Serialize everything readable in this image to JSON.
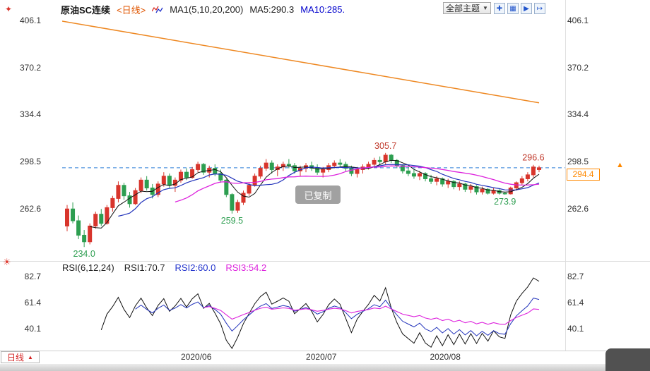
{
  "header": {
    "symbol": "原油SC连续",
    "period": "<日线>",
    "ma_settings": "MA1(5,10,20,200)",
    "ma5": "MA5:290.3",
    "ma10": "MA10:285.",
    "theme_button": {
      "label": "全部主题",
      "caret": "▼"
    },
    "toolbar_icons": [
      "✚",
      "▦",
      "▶",
      "↦"
    ]
  },
  "icons": {
    "marker": "✦",
    "sun": "☀",
    "arrow_up": "▲"
  },
  "toast": "已复制",
  "rsi_header": {
    "title": "RSI(6,12,24)",
    "rsi1": "RSI1:70.7",
    "rsi2": "RSI2:60.0",
    "rsi3": "RSI3:54.2"
  },
  "price_box": "294.4",
  "bottom": {
    "tab_label": "日线",
    "tab_caret": "▲"
  },
  "colors": {
    "up": "#d8352c",
    "down": "#2d9e50",
    "ma5": "#111111",
    "ma10": "#2233bb",
    "ma20": "#dd22dd",
    "ma200": "#ee8822",
    "dashed": "#2f7fd6",
    "ann_red": "#c0392b",
    "ann_green": "#2d9e50",
    "accent_orange": "#ff8800"
  },
  "chart_data": {
    "type": "candlestick",
    "title": "原油SC连续 日线",
    "main": {
      "y_ticks": [
        406.1,
        370.2,
        334.4,
        298.5,
        262.6
      ],
      "last_price": 294.4,
      "ma_periods": [
        5,
        10,
        20
      ],
      "ma200": {
        "start": 406.1,
        "end": 343.9
      },
      "annotations": [
        {
          "text": "305.7",
          "index": 56,
          "price": 305.7,
          "placement": "above",
          "color": "#c0392b"
        },
        {
          "text": "296.6",
          "index": 82,
          "price": 296.6,
          "placement": "above",
          "color": "#c0392b"
        },
        {
          "text": "273.9",
          "index": 77,
          "price": 273.9,
          "placement": "below",
          "color": "#2d9e50"
        },
        {
          "text": "259.5",
          "index": 29,
          "price": 259.5,
          "placement": "below",
          "color": "#2d9e50"
        },
        {
          "text": "234.0",
          "index": 3,
          "price": 234.0,
          "placement": "below",
          "color": "#2d9e50"
        }
      ],
      "candles": [
        [
          250,
          266,
          246,
          263
        ],
        [
          263,
          268,
          252,
          254
        ],
        [
          254,
          258,
          240,
          243
        ],
        [
          243,
          247,
          234,
          238
        ],
        [
          238,
          252,
          236,
          250
        ],
        [
          250,
          261,
          248,
          259
        ],
        [
          259,
          263,
          250,
          252
        ],
        [
          252,
          266,
          251,
          264
        ],
        [
          264,
          273,
          261,
          271
        ],
        [
          271,
          284,
          268,
          281
        ],
        [
          281,
          283,
          270,
          273
        ],
        [
          273,
          276,
          264,
          267
        ],
        [
          267,
          279,
          266,
          277
        ],
        [
          277,
          287,
          275,
          285
        ],
        [
          285,
          288,
          277,
          279
        ],
        [
          279,
          282,
          271,
          274
        ],
        [
          274,
          284,
          272,
          282
        ],
        [
          282,
          291,
          280,
          288
        ],
        [
          288,
          290,
          279,
          281
        ],
        [
          281,
          287,
          276,
          285
        ],
        [
          285,
          293,
          283,
          291
        ],
        [
          291,
          294,
          285,
          287
        ],
        [
          287,
          295,
          286,
          293
        ],
        [
          293,
          299,
          291,
          297
        ],
        [
          297,
          298,
          289,
          291
        ],
        [
          291,
          296,
          287,
          294
        ],
        [
          294,
          297,
          288,
          290
        ],
        [
          290,
          293,
          283,
          285
        ],
        [
          285,
          286,
          272,
          274
        ],
        [
          274,
          275,
          259.5,
          262
        ],
        [
          262,
          270,
          260,
          268
        ],
        [
          268,
          277,
          266,
          275
        ],
        [
          275,
          283,
          273,
          281
        ],
        [
          281,
          290,
          280,
          288
        ],
        [
          288,
          296,
          286,
          294
        ],
        [
          294,
          301,
          292,
          298
        ],
        [
          298,
          300,
          290,
          293
        ],
        [
          293,
          297,
          288,
          295
        ],
        [
          295,
          299,
          292,
          297
        ],
        [
          297,
          301,
          294,
          296
        ],
        [
          296,
          298,
          290,
          292
        ],
        [
          292,
          296,
          288,
          294
        ],
        [
          294,
          298,
          291,
          296
        ],
        [
          296,
          299,
          292,
          294
        ],
        [
          294,
          297,
          289,
          291
        ],
        [
          291,
          295,
          287,
          293
        ],
        [
          293,
          298,
          291,
          296
        ],
        [
          296,
          300,
          294,
          298
        ],
        [
          298,
          301,
          295,
          297
        ],
        [
          297,
          299,
          292,
          294
        ],
        [
          294,
          296,
          288,
          290
        ],
        [
          290,
          295,
          287,
          293
        ],
        [
          293,
          297,
          290,
          295
        ],
        [
          295,
          299,
          293,
          297
        ],
        [
          297,
          302,
          295,
          300
        ],
        [
          300,
          303,
          297,
          299
        ],
        [
          299,
          305.7,
          297,
          304
        ],
        [
          304,
          305,
          298,
          300
        ],
        [
          300,
          301,
          294,
          296
        ],
        [
          296,
          297,
          290,
          292
        ],
        [
          292,
          295,
          288,
          290
        ],
        [
          290,
          293,
          286,
          288
        ],
        [
          288,
          292,
          285,
          290
        ],
        [
          290,
          291,
          284,
          286
        ],
        [
          286,
          289,
          282,
          284
        ],
        [
          284,
          288,
          281,
          286
        ],
        [
          286,
          287,
          280,
          282
        ],
        [
          282,
          286,
          279,
          284
        ],
        [
          284,
          285,
          278,
          280
        ],
        [
          280,
          284,
          277,
          282
        ],
        [
          282,
          283,
          276,
          278
        ],
        [
          278,
          282,
          275,
          280
        ],
        [
          280,
          281,
          274,
          276
        ],
        [
          276,
          280,
          274,
          278
        ],
        [
          278,
          279,
          274,
          275
        ],
        [
          275,
          279,
          274,
          277
        ],
        [
          277,
          278,
          274,
          275
        ],
        [
          275,
          276,
          273.9,
          274.5
        ],
        [
          274.5,
          280,
          274,
          279
        ],
        [
          279,
          284,
          277,
          283
        ],
        [
          283,
          288,
          281,
          286
        ],
        [
          286,
          291,
          284,
          289
        ],
        [
          289,
          296.6,
          287,
          295
        ],
        [
          293,
          296,
          291,
          294.4
        ]
      ]
    },
    "rsi": {
      "periods": [
        6,
        12,
        24
      ],
      "y_ticks": [
        82.7,
        61.4,
        40.1
      ],
      "last_values": [
        70.7,
        60.0,
        54.2
      ]
    },
    "x_ticks": [
      {
        "label": "2020/06",
        "index": 22.7
      },
      {
        "label": "2020/07",
        "index": 44.7
      },
      {
        "label": "2020/08",
        "index": 66.5
      }
    ]
  }
}
